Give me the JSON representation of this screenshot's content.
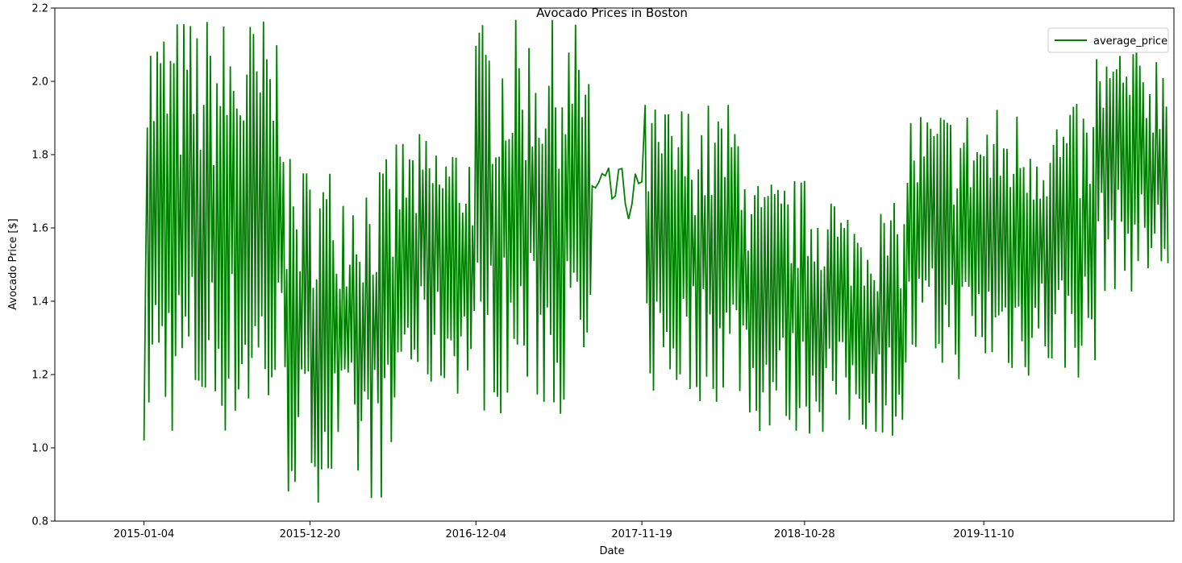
{
  "chart_data": {
    "type": "line",
    "title": "Avocado Prices in Boston",
    "xlabel": "Date",
    "ylabel": "Avocado Price [$]",
    "ylim": [
      0.8,
      2.2
    ],
    "yticks": [
      0.8,
      1.0,
      1.2,
      1.4,
      1.6,
      1.8,
      2.0,
      2.2
    ],
    "ytick_labels": [
      "0.8",
      "1.0",
      "1.2",
      "1.4",
      "1.6",
      "1.8",
      "2.0",
      "2.2"
    ],
    "xticks": [
      "2015-01-04",
      "2015-12-20",
      "2016-12-04",
      "2017-11-19",
      "2018-10-28",
      "2019-11-10"
    ],
    "xlim_dates": [
      "2014-06-30",
      "2020-12-15"
    ],
    "grid": false,
    "legend": {
      "position": "top-right",
      "entries": [
        "average_price"
      ]
    },
    "line_color": "#008000",
    "series": [
      {
        "name": "average_price",
        "color": "#008000",
        "x_start": "2015-01-04",
        "x_end": "2020-11-29",
        "segments": [
          {
            "from": "2015-01-04",
            "to": "2015-10-25",
            "low": 1.02,
            "high": 2.19,
            "pattern": "alternating"
          },
          {
            "from": "2015-11-01",
            "to": "2016-06-12",
            "low": 0.85,
            "high": 1.79,
            "pattern": "alternating"
          },
          {
            "from": "2016-06-19",
            "to": "2016-11-27",
            "low": 1.14,
            "high": 1.86,
            "pattern": "alternating"
          },
          {
            "from": "2016-12-04",
            "to": "2017-07-30",
            "low": 1.09,
            "high": 2.17,
            "pattern": "alternating"
          },
          {
            "from": "2017-08-06",
            "to": "2017-11-19",
            "low": 1.37,
            "high": 1.81,
            "pattern": "smooth"
          },
          {
            "from": "2017-11-26",
            "to": "2018-06-24",
            "low": 1.12,
            "high": 1.95,
            "pattern": "alternating"
          },
          {
            "from": "2018-07-01",
            "to": "2018-12-30",
            "low": 1.03,
            "high": 1.74,
            "pattern": "alternating"
          },
          {
            "from": "2019-01-06",
            "to": "2019-05-26",
            "low": 1.03,
            "high": 1.67,
            "pattern": "alternating"
          },
          {
            "from": "2019-06-02",
            "to": "2020-06-28",
            "low": 1.18,
            "high": 1.94,
            "pattern": "alternating"
          },
          {
            "from": "2020-07-05",
            "to": "2020-11-29",
            "low": 1.42,
            "high": 2.11,
            "pattern": "alternating"
          }
        ]
      }
    ]
  }
}
